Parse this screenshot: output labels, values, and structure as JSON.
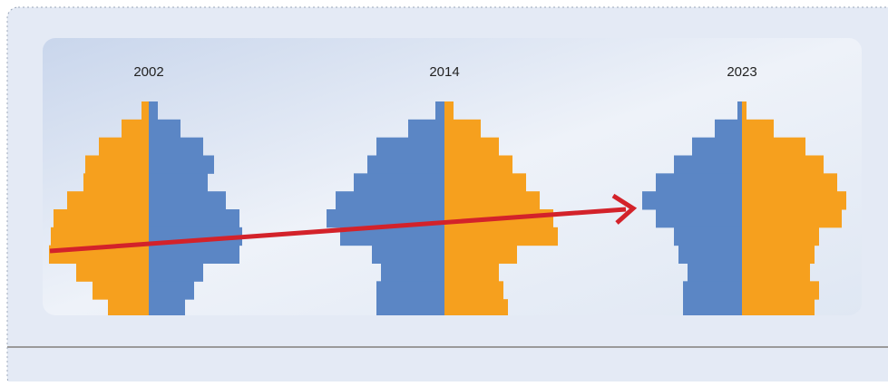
{
  "chart_data": [
    {
      "type": "pyramid",
      "title": "2002",
      "series": [
        {
          "side": "left",
          "color": "#f6a01e",
          "values": [
            8,
            30,
            55,
            70,
            72,
            90,
            105,
            108,
            110,
            80,
            62,
            45
          ]
        },
        {
          "side": "right",
          "color": "#5b86c5",
          "values": [
            10,
            35,
            60,
            72,
            65,
            85,
            100,
            103,
            100,
            60,
            50,
            40
          ]
        }
      ]
    },
    {
      "type": "pyramid",
      "title": "2014",
      "series": [
        {
          "side": "left",
          "color": "#5b86c5",
          "values": [
            10,
            40,
            75,
            85,
            100,
            120,
            130,
            115,
            80,
            70,
            75,
            75
          ]
        },
        {
          "side": "right",
          "color": "#f6a01e",
          "values": [
            10,
            40,
            60,
            75,
            90,
            105,
            120,
            125,
            80,
            60,
            65,
            70
          ]
        }
      ]
    },
    {
      "type": "pyramid",
      "title": "2023",
      "series": [
        {
          "side": "left",
          "color": "#5b86c5",
          "values": [
            5,
            30,
            55,
            75,
            95,
            110,
            95,
            75,
            70,
            60,
            65,
            65
          ]
        },
        {
          "side": "right",
          "color": "#f6a01e",
          "values": [
            5,
            35,
            70,
            90,
            105,
            115,
            110,
            85,
            80,
            75,
            85,
            80
          ]
        }
      ]
    }
  ]
}
